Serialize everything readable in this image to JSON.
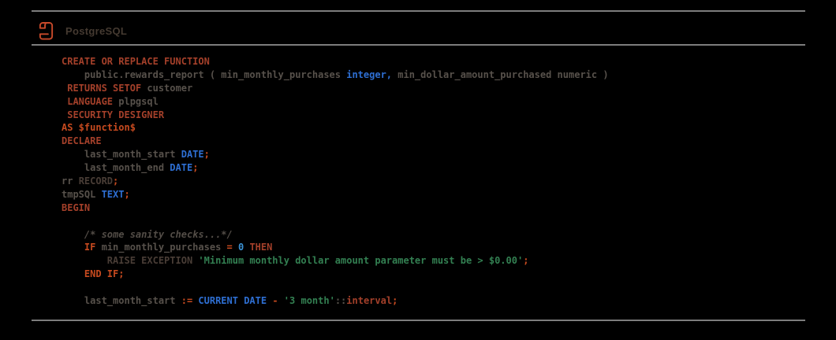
{
  "header": {
    "title": "PostgreSQL",
    "icon": "postgresql-scroll-icon"
  },
  "colors": {
    "bg": "#000000",
    "rule": "#7d7d7d",
    "header-text": "#453a31",
    "icon": "#c7492a",
    "kw1": "#a4402a",
    "kw2": "#c64a1f",
    "id": "#57514b",
    "kw3": "#493d36",
    "type": "#2e6fd3",
    "num": "#3b93d6",
    "str": "#338052",
    "cmt": "#534d47"
  },
  "code": {
    "language": "plpgsql",
    "lines": [
      {
        "segments": [
          {
            "s": "kw1",
            "t": "CREATE OR REPLACE FUNCTION"
          }
        ]
      },
      {
        "segments": [
          {
            "s": "id",
            "t": "    public.rewards_report ( min_monthly_purchases "
          },
          {
            "s": "type",
            "t": "integer,"
          },
          {
            "s": "id",
            "t": " min_dollar_amount_purchased numeric )"
          }
        ]
      },
      {
        "segments": [
          {
            "s": "kw1",
            "t": " RETURNS SETOF"
          },
          {
            "s": "id",
            "t": " customer"
          }
        ]
      },
      {
        "segments": [
          {
            "s": "kw1",
            "t": " LANGUAGE"
          },
          {
            "s": "id",
            "t": " plpgsql"
          }
        ]
      },
      {
        "segments": [
          {
            "s": "kw1",
            "t": " SECURITY DESIGNER"
          }
        ]
      },
      {
        "segments": [
          {
            "s": "kw2",
            "t": "AS $function$"
          }
        ]
      },
      {
        "segments": [
          {
            "s": "kw1",
            "t": "DECLARE"
          }
        ]
      },
      {
        "segments": [
          {
            "s": "id",
            "t": "    last_month_start "
          },
          {
            "s": "type",
            "t": "DATE"
          },
          {
            "s": "kw2",
            "t": ";"
          }
        ]
      },
      {
        "segments": [
          {
            "s": "id",
            "t": "    last_month_end "
          },
          {
            "s": "type",
            "t": "DATE"
          },
          {
            "s": "kw2",
            "t": ";"
          }
        ]
      },
      {
        "segments": [
          {
            "s": "id",
            "t": "rr "
          },
          {
            "s": "kw3",
            "t": "RECORD"
          },
          {
            "s": "kw2",
            "t": ";"
          }
        ]
      },
      {
        "segments": [
          {
            "s": "id",
            "t": "tmpSQL "
          },
          {
            "s": "type",
            "t": "TEXT"
          },
          {
            "s": "kw2",
            "t": ";"
          }
        ]
      },
      {
        "segments": [
          {
            "s": "kw1",
            "t": "BEGIN"
          }
        ]
      },
      {
        "segments": []
      },
      {
        "segments": [
          {
            "s": "cmt",
            "t": "    /* some sanity checks...*/"
          }
        ]
      },
      {
        "segments": [
          {
            "s": "kw2",
            "t": "    IF"
          },
          {
            "s": "id",
            "t": " min_monthly_purchases "
          },
          {
            "s": "kw2",
            "t": "="
          },
          {
            "s": "id",
            "t": " "
          },
          {
            "s": "num",
            "t": "0"
          },
          {
            "s": "kw1",
            "t": " THEN"
          }
        ]
      },
      {
        "segments": [
          {
            "s": "kw3",
            "t": "        RAISE EXCEPTION "
          },
          {
            "s": "str",
            "t": "'Minimum monthly dollar amount parameter must be > $0.00'"
          },
          {
            "s": "kw2",
            "t": ";"
          }
        ]
      },
      {
        "segments": [
          {
            "s": "kw2",
            "t": "    END IF;"
          }
        ]
      },
      {
        "segments": []
      },
      {
        "segments": [
          {
            "s": "id",
            "t": "    last_month_start "
          },
          {
            "s": "kw2",
            "t": ":="
          },
          {
            "s": "id",
            "t": " "
          },
          {
            "s": "type",
            "t": "CURRENT DATE"
          },
          {
            "s": "kw2",
            "t": " -"
          },
          {
            "s": "id",
            "t": " "
          },
          {
            "s": "str",
            "t": "'3 month'"
          },
          {
            "s": "id",
            "t": "::"
          },
          {
            "s": "kw1",
            "t": "interval"
          },
          {
            "s": "kw2",
            "t": ";"
          }
        ]
      }
    ]
  }
}
